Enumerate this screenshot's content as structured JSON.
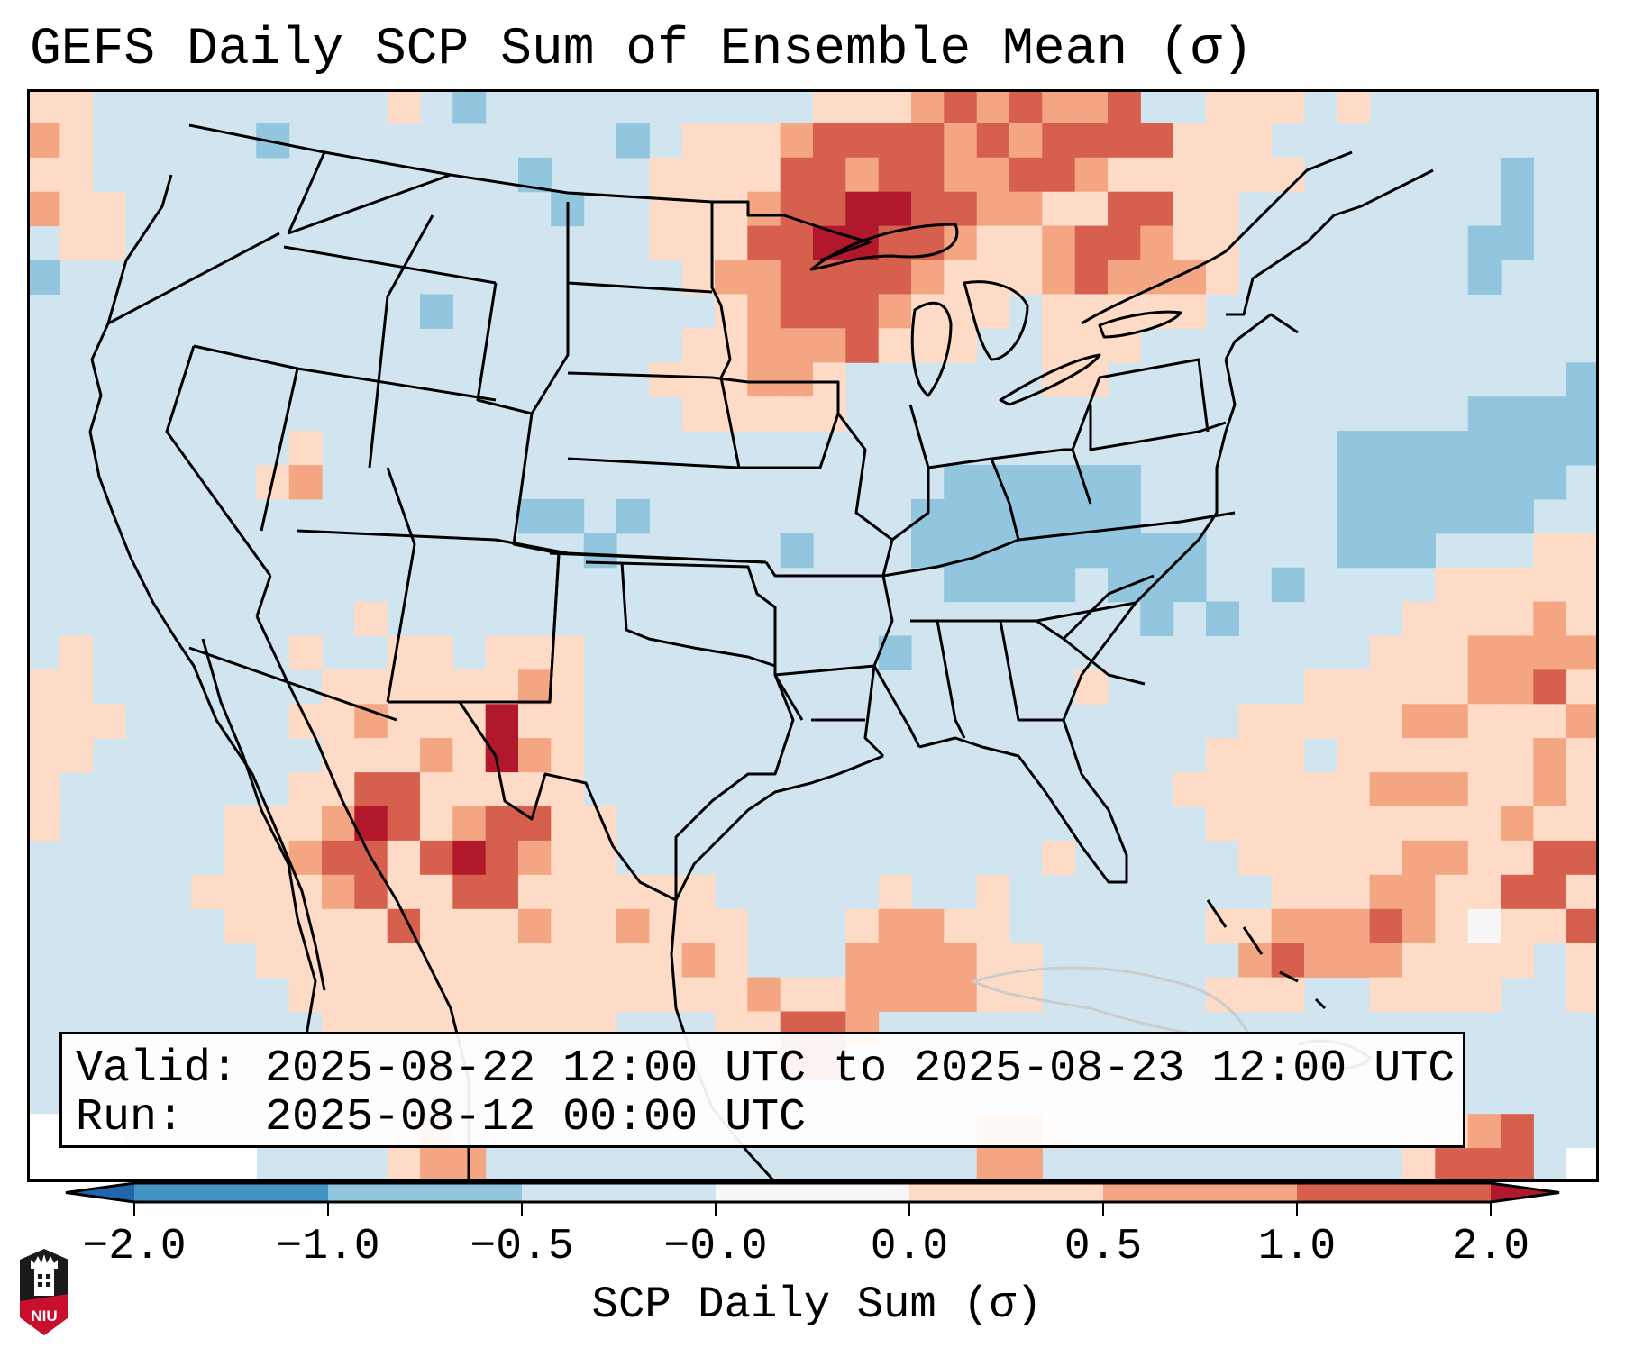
{
  "title": "GEFS Daily SCP Sum of Ensemble Mean (σ)",
  "info": {
    "valid_line": "Valid: 2025-08-22 12:00 UTC to 2025-08-23 12:00 UTC",
    "run_line": "Run:   2025-08-12 00:00 UTC",
    "valid_start": "2025-08-22 12:00 UTC",
    "valid_end": "2025-08-23 12:00 UTC",
    "run": "2025-08-12 00:00 UTC"
  },
  "logo": {
    "text": "NIU",
    "name": "Northern Illinois University logo"
  },
  "colors": {
    "border": "#000000",
    "land_outline": "#000000"
  },
  "chart_data": {
    "type": "heatmap",
    "title": "GEFS Daily SCP Sum of Ensemble Mean (σ)",
    "variable": "SCP Daily Sum (σ)",
    "region": "Contiguous United States, northern Mexico, Gulf of Mexico, western Atlantic",
    "colorbar": {
      "label": "SCP Daily Sum (σ)",
      "orientation": "horizontal",
      "placement": "bottom",
      "extend": "both",
      "boundaries": [
        -2.0,
        -1.0,
        -0.5,
        -0.0,
        0.0,
        0.5,
        1.0,
        2.0
      ],
      "tick_labels": [
        "−2.0",
        "−1.0",
        "−0.5",
        "−0.0",
        "0.0",
        "0.5",
        "1.0",
        "2.0"
      ],
      "under_color": "#2166ac",
      "over_color": "#b2182b",
      "bin_colors": [
        "#4393c3",
        "#92c5de",
        "#d1e5f0",
        "#f7f7f7",
        "#fddbc7",
        "#f4a582",
        "#d6604d"
      ]
    },
    "category_key": {
      "A": {
        "range": "-1.0 to -0.5",
        "color": "#92c5de"
      },
      "b": {
        "range": "-0.5 to -0.0",
        "color": "#d1e5f0"
      },
      "w": {
        "range": "-0.0 to 0.0",
        "color": "#f7f7f7"
      },
      "p": {
        "range": "0.0 to 0.5",
        "color": "#fddbc7"
      },
      "s": {
        "range": "0.5 to 1.0",
        "color": "#f4a582"
      },
      "r": {
        "range": "1.0 to 2.0",
        "color": "#d6604d"
      },
      "R": {
        "range": "> 2.0",
        "color": "#b2182b"
      },
      "n": {
        "range": "no data",
        "color": "#ffffff"
      }
    },
    "grid_cols": 48,
    "grid_rows": 32,
    "grid": [
      "ppbbbbbbbbbpbAbbbbbbbbbbpppsrsrssrbbpppbpbbbbbbb",
      "spbbbbbAbbbbbbbbbbAbpppsrrrrsrsrrrrpppbbbbbbbbbb",
      "ppbbbbbbbbbbbbbAbbbpppprrsrrssrrsppppppbbbbbbAbb",
      "sppbbbbbbbbbbbbbAbbpppsrrRRrrsspprrppbbbbbbbbAbb",
      "bppbbbbbbbbbbbbbbbbppprrRRrrsppsrrsppbbbbbbbAAbb",
      "AbbbbbbbbbbbbbbbbbbbpssrrrrspppsrssspbbbbbbbAbbb",
      "bbbbbbbbbbbbAbbbbbbbbpsrrrspppbpppppbbbbbbbbbbbb",
      "bbbbbbbbbbbbbbbbbbbbppsssrpppbbpppbbbbbbbbbbbbbb",
      "bbbbbbbbbbbbbbbbbbbpppsspbbbbbbppbbbbbbbbbbbbbbA",
      "bbbbbbbbbbbbbbbbbbbbpppppbbbbbbbbbbbbbbbbbbbAAAA",
      "bbbbbbbbpbbbbbbbbbbbbbbbbbbbbbbbbbbbbbbbAAAAAAAA",
      "bbbbbbbpsbbbbbbbbbbbbbbbbbbbAAAAAAbbbbbbAAAAAAAb",
      "bbbbbbbbbbbbbbbAAbAbbbbbbbbAAAAAAAbbbbbbAAAAAAbb",
      "bbbbbbbbbbbbbbbbbAbbbbbAbbbAAAAAAAAAbbbbAAAbbbpp",
      "bbbbbbbbbbbbbbbbbbbbbbbbbbbbAAAAbAAAbbAbbbbppppp",
      "bbbbbbbbbbpbbbbbbbbbbbbbbbbbbbbbbbAbAbbbbbppppsp",
      "bpbbbbbbpbbppbpppbbbbbbbbbAbbbbbbbbbbbbbbpppssss",
      "ppbbbbbbbppppppspbbbbbbbbbbbbbbbpbbbbbbpppppssrp",
      "pppbbbbbppspppRppbbbbbbbbbbbbbbbbbbbbpppppssppps",
      "ppbbbbbbbpppspRspbbbbbbbbbbbbbbbbbbbpppbppppppsp",
      "pbbbbbbbpprrpppppbbbbbbbbbbbbbbbbbbppppppsssppsp",
      "pbbbbbpppsRrpsrrppbbbbbbbbbbbbbbbbbbpppppppppspp",
      "bbbbbbppsrrprRrsppbbbbbbbbbbbbbpbbbbbpppppsspprr",
      "bbbbbppppsrpprrppppppbbbbbpbbpbbbbbbbbpppsspprrp",
      "bbbbbbppppprpppsppspppbbbpssppbbbbbbppsssrspwppr",
      "bbbbbbbpppppppppppppspbbbssssppbbbbbbsrsssppppbp",
      "bbbbbbbbppppppppppppppsppssssppbbbbbpppbbppppbbp",
      "bbbbbbbbbpppppppppbbbpprrsbbbbbbbbbbbbbbbbbbbbbb",
      "bbbbbbbbbbppppppbbbbbpprrbbbbbbbbbbbbbbbbbbbbbbb",
      "bbbbbbbbbbbpppppbbbbbbbbbbbbbbbbbbbbbbbbbbbbbbbb",
      "nnnbbbbbbbbpsbbbbbbbbbbbbbbbbsspbbbbbbbbbbppsrbb",
      "nnnnnnnbbbbpssbbbbbbbbbbbbbbbssbbbbbbbbbbbprrrbn"
    ]
  }
}
